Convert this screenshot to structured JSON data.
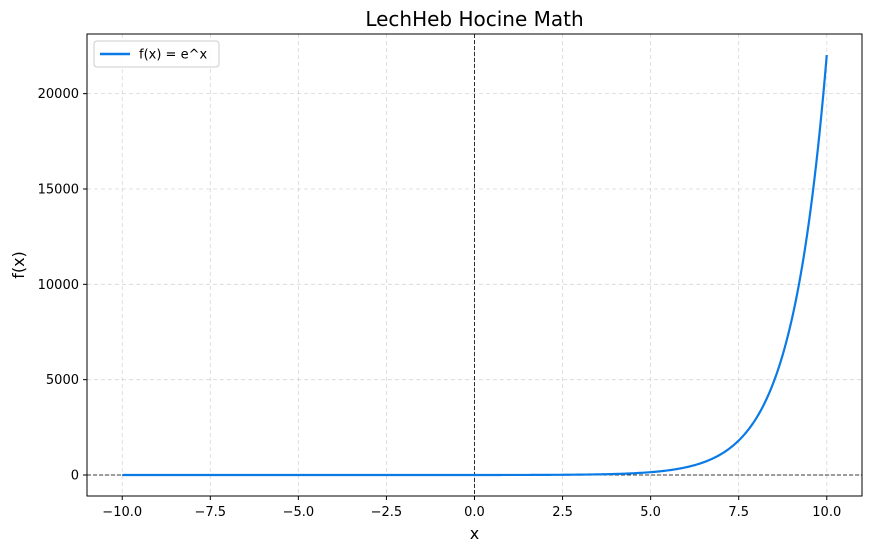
{
  "chart_data": {
    "type": "line",
    "title": "LechHeb Hocine Math",
    "xlabel": "x",
    "ylabel": "f(x)",
    "xlim": [
      -11,
      11
    ],
    "ylim": [
      -1101,
      23128
    ],
    "xticks": [
      -10.0,
      -7.5,
      -5.0,
      -2.5,
      0.0,
      2.5,
      5.0,
      7.5,
      10.0
    ],
    "xtick_labels": [
      "−10.0",
      "−7.5",
      "−5.0",
      "−2.5",
      "0.0",
      "2.5",
      "5.0",
      "7.5",
      "10.0"
    ],
    "yticks": [
      0,
      5000,
      10000,
      15000,
      20000
    ],
    "ytick_labels": [
      "0",
      "5000",
      "10000",
      "15000",
      "20000"
    ],
    "grid": true,
    "legend_position": "top-left",
    "reference_lines": {
      "x": 0,
      "y": 0
    },
    "series": [
      {
        "name": "f(x) = e^x",
        "color": "#0a7ae6",
        "function": "exp",
        "x_range": [
          -10,
          10
        ],
        "points": [
          [
            -10,
            5e-05
          ],
          [
            -5,
            0.0067
          ],
          [
            0,
            1
          ],
          [
            2.5,
            12.2
          ],
          [
            5,
            148.4
          ],
          [
            6,
            403.4
          ],
          [
            7,
            1096.6
          ],
          [
            7.5,
            1808.0
          ],
          [
            8,
            2981.0
          ],
          [
            8.5,
            4914.8
          ],
          [
            9,
            8103.1
          ],
          [
            9.5,
            13359.7
          ],
          [
            10,
            22026.5
          ]
        ]
      }
    ]
  }
}
